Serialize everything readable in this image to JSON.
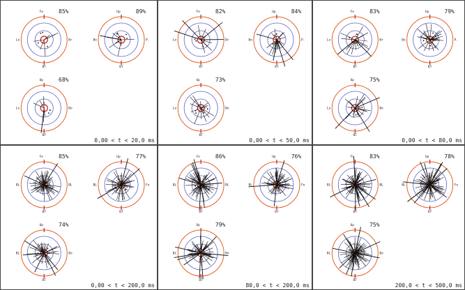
{
  "colors": {
    "outer_ring": "#e0632a",
    "inner_ring": "#5a63c9",
    "tick_red": "#d01818",
    "spike": "#111111",
    "frame": "#444444"
  },
  "panels": [
    {
      "range": "0,00 < t < 20,0 ms",
      "plots": [
        {
          "top": "Fe",
          "left": "Lo",
          "right": "Br",
          "bottom": "BT",
          "pct": "85%",
          "density": 6
        },
        {
          "top": "Up",
          "left": "Bo",
          "right": "P.",
          "bottom": "BT",
          "pct": "89%",
          "density": 10
        },
        {
          "top": "Up",
          "left": "Lo",
          "right": "Bo",
          "bottom": "BT",
          "pct": "68%",
          "density": 7
        }
      ]
    },
    {
      "range": "0,00 < t < 50,0 ms",
      "plots": [
        {
          "top": "Fe",
          "left": "Lo",
          "right": "Br",
          "bottom": "BT",
          "pct": "82%",
          "density": 12
        },
        {
          "top": "Up",
          "left": "Bo",
          "right": "P.",
          "bottom": "BT",
          "pct": "84%",
          "density": 18
        },
        {
          "top": "Up",
          "left": "Lo",
          "right": "Bo",
          "bottom": "BT",
          "pct": "73%",
          "density": 14
        }
      ]
    },
    {
      "range": "0,00 < t < 80,0 ms",
      "plots": [
        {
          "top": "Fe",
          "left": "Lo",
          "right": "Br",
          "bottom": "BT",
          "pct": "83%",
          "density": 18
        },
        {
          "top": "Up",
          "left": "Bo",
          "right": "P.",
          "bottom": "BT",
          "pct": "79%",
          "density": 24
        },
        {
          "top": "Up",
          "left": "Lo",
          "right": "Bo",
          "bottom": "BT",
          "pct": "75%",
          "density": 20
        }
      ]
    },
    {
      "range": "0,00 < t < 200,0 ms",
      "plots": [
        {
          "top": "Fe",
          "left": "BL",
          "right": "BL",
          "bottom": "BT",
          "pct": "85%",
          "density": 50
        },
        {
          "top": "Up",
          "left": "BL",
          "right": "Fe",
          "bottom": "BT",
          "pct": "77%",
          "density": 46
        },
        {
          "top": "Up",
          "left": "BL",
          "right": "Bo",
          "bottom": "BT",
          "pct": "74%",
          "density": 40
        }
      ]
    },
    {
      "range": "80,0 < t < 200,0 ms",
      "plots": [
        {
          "top": "Fe",
          "left": "BL",
          "right": "BL",
          "bottom": "BT",
          "pct": "86%",
          "density": 58
        },
        {
          "top": "Up",
          "left": "BL",
          "right": "Fe",
          "bottom": "BT",
          "pct": "76%",
          "density": 52
        },
        {
          "top": "Up",
          "left": "BL",
          "right": "Bo",
          "bottom": "BT",
          "pct": "79%",
          "density": 56
        }
      ]
    },
    {
      "range": "200,0 < t < 500,0 ms",
      "plots": [
        {
          "top": "Fe",
          "left": "BL",
          "right": "BL",
          "bottom": "BT",
          "pct": "83%",
          "density": 72
        },
        {
          "top": "Up",
          "left": "BL",
          "right": "Fe",
          "bottom": "BT",
          "pct": "78%",
          "density": 70
        },
        {
          "top": "Up",
          "left": "BL",
          "right": "Bo",
          "bottom": "BT",
          "pct": "75%",
          "density": 66
        }
      ]
    }
  ]
}
